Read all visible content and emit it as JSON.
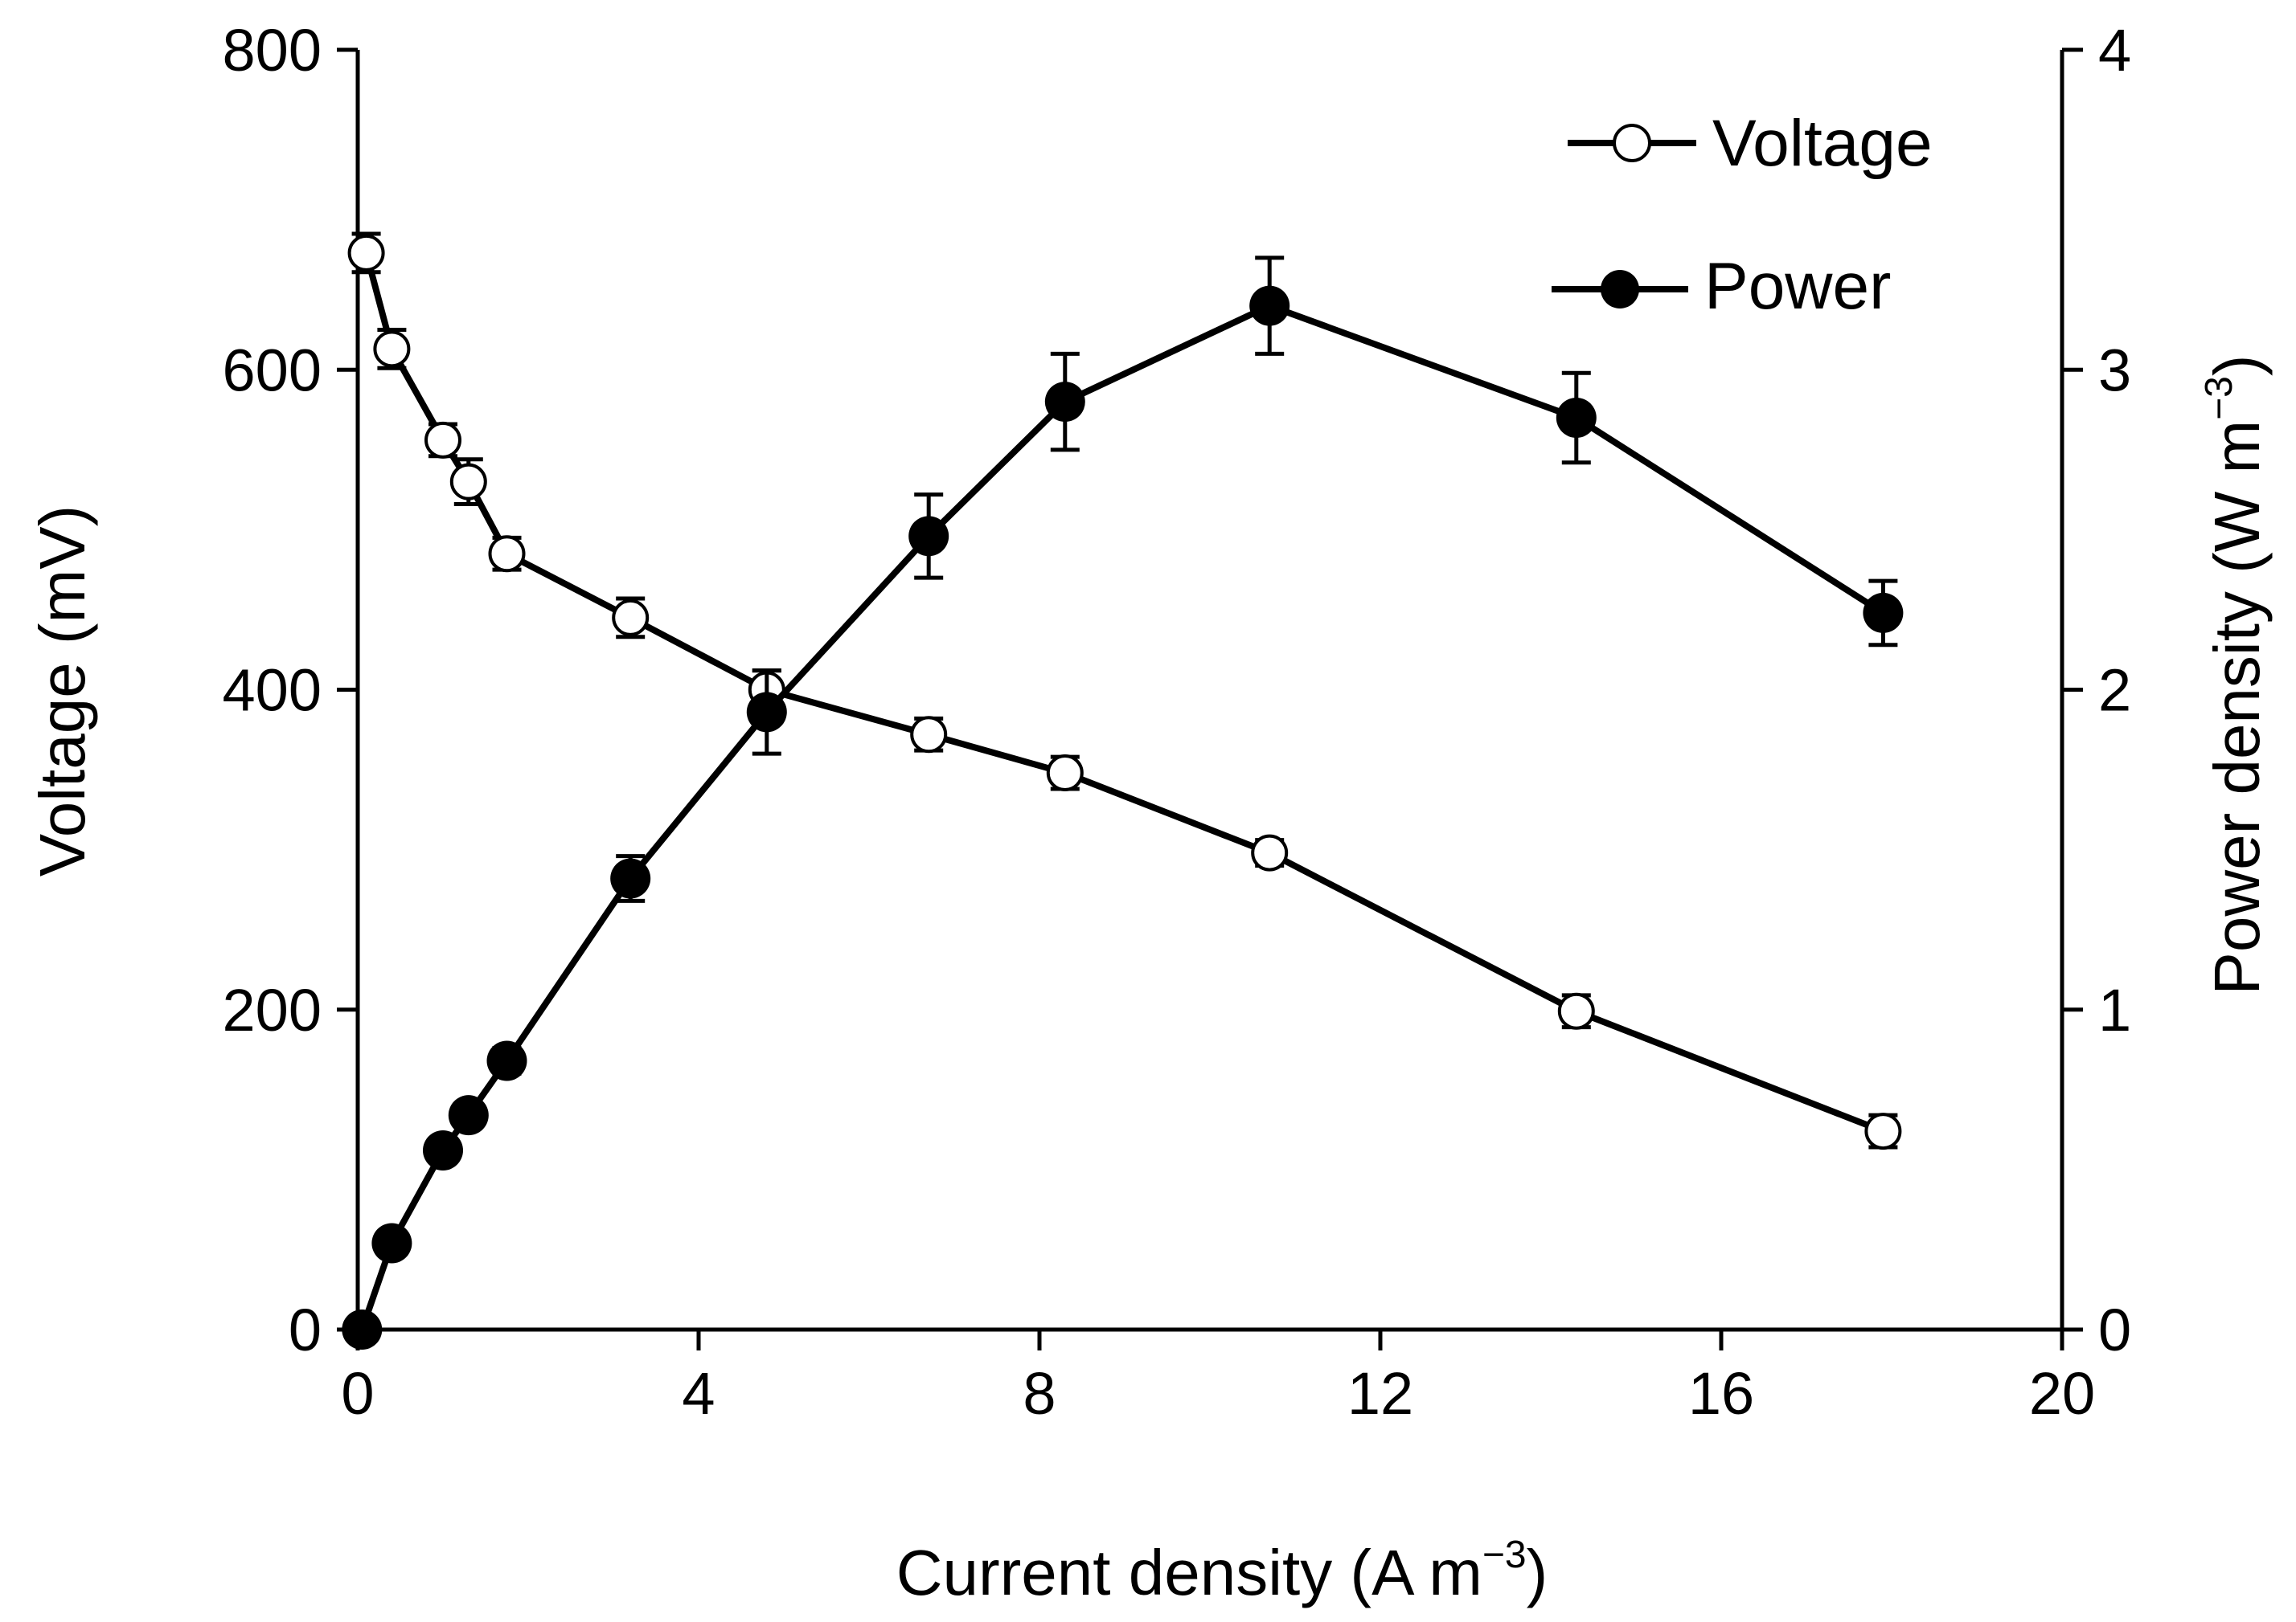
{
  "chart_data": {
    "type": "line",
    "title": "",
    "xlabel": "Current density (A m",
    "xlabel_sup": "−3",
    "xlabel_tail": ")",
    "ylabel": "Voltage (mV)",
    "y2label": "Power density (W m",
    "y2label_sup": "−3",
    "y2label_tail": ")",
    "xlim": [
      0,
      20
    ],
    "ylim": [
      0,
      800
    ],
    "y2lim": [
      0,
      4
    ],
    "xticks": [
      0,
      4,
      8,
      12,
      16,
      20
    ],
    "yticks": [
      0,
      200,
      400,
      600,
      800
    ],
    "y2ticks": [
      0,
      1,
      2,
      3,
      4
    ],
    "grid": false,
    "legend_position": "top-right",
    "series": [
      {
        "name": "Voltage",
        "axis": "left",
        "marker": "open-circle",
        "x": [
          0.1,
          0.4,
          1.0,
          1.3,
          1.75,
          3.2,
          4.8,
          6.7,
          8.3,
          10.7,
          14.3,
          17.9
        ],
        "values": [
          673,
          613,
          556,
          530,
          485,
          445,
          400,
          372,
          348,
          298,
          199,
          124
        ],
        "errors": [
          12,
          12,
          10,
          14,
          10,
          12,
          12,
          10,
          10,
          8,
          10,
          10
        ]
      },
      {
        "name": "Power",
        "axis": "right",
        "marker": "filled-circle",
        "x": [
          0.05,
          0.4,
          1.0,
          1.3,
          1.75,
          3.2,
          4.8,
          6.7,
          8.3,
          10.7,
          14.3,
          17.9
        ],
        "values": [
          0.0,
          0.27,
          0.56,
          0.67,
          0.84,
          1.41,
          1.93,
          2.48,
          2.9,
          3.2,
          2.85,
          2.24
        ],
        "errors": [
          0.02,
          0.02,
          0.03,
          0.03,
          0.04,
          0.07,
          0.13,
          0.13,
          0.15,
          0.15,
          0.14,
          0.1
        ]
      }
    ]
  }
}
